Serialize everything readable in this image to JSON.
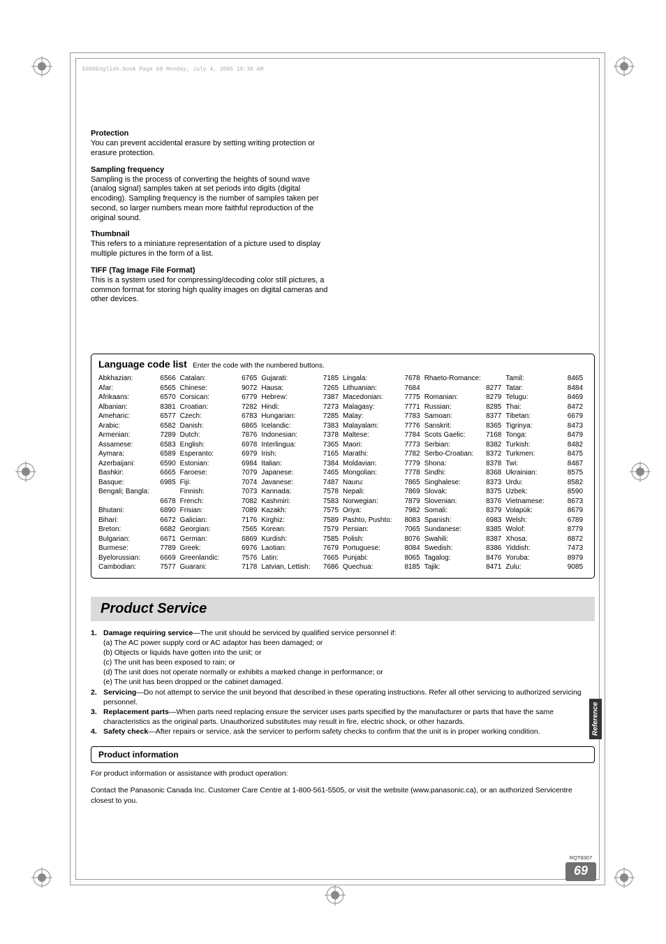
{
  "book_header": "E60DEnglish.book  Page 69  Monday, July 4, 2005  10:39 AM",
  "defs": {
    "protection": {
      "title": "Protection",
      "body": "You can prevent accidental erasure by setting writing protection or erasure protection."
    },
    "sampling": {
      "title": "Sampling frequency",
      "body": "Sampling is the process of converting the heights of sound wave (analog signal) samples taken at set periods into digits (digital encoding). Sampling frequency is the number of samples taken per second, so larger numbers mean more faithful reproduction of the original sound."
    },
    "thumb": {
      "title": "Thumbnail",
      "body": "This refers to a miniature representation of a picture used to display multiple pictures in the form of a list."
    },
    "tiff": {
      "title": "TIFF (Tag Image File Format)",
      "body": "This is a system used for compressing/decoding color still pictures, a common format for storing high quality images on digital cameras and other devices."
    }
  },
  "lang": {
    "title": "Language code list",
    "sub": "Enter the code with the numbered buttons.",
    "cols": [
      [
        {
          "n": "Abkhazian:",
          "c": "6566"
        },
        {
          "n": "Afar:",
          "c": "6565"
        },
        {
          "n": "Afrikaans:",
          "c": "6570"
        },
        {
          "n": "Albanian:",
          "c": "8381"
        },
        {
          "n": "Ameharic:",
          "c": "6577"
        },
        {
          "n": "Arabic:",
          "c": "6582"
        },
        {
          "n": "Armenian:",
          "c": "7289"
        },
        {
          "n": "Assamese:",
          "c": "6583"
        },
        {
          "n": "Aymara:",
          "c": "6589"
        },
        {
          "n": "Azerbaijani:",
          "c": "6590"
        },
        {
          "n": "Bashkir:",
          "c": "6665"
        },
        {
          "n": "Basque:",
          "c": "6985"
        },
        {
          "n": "Bengali; Bangla:",
          "c": ""
        },
        {
          "n": "",
          "c": "6678"
        },
        {
          "n": "Bhutani:",
          "c": "6890"
        },
        {
          "n": "Bihari:",
          "c": "6672"
        },
        {
          "n": "Breton:",
          "c": "6682"
        },
        {
          "n": "Bulgarian:",
          "c": "6671"
        },
        {
          "n": "Burmese:",
          "c": "7789"
        },
        {
          "n": "Byelorussian:",
          "c": "6669"
        },
        {
          "n": "Cambodian:",
          "c": "7577"
        }
      ],
      [
        {
          "n": "Catalan:",
          "c": "6765"
        },
        {
          "n": "Chinese:",
          "c": "9072"
        },
        {
          "n": "Corsican:",
          "c": "6779"
        },
        {
          "n": "Croatian:",
          "c": "7282"
        },
        {
          "n": "Czech:",
          "c": "6783"
        },
        {
          "n": "Danish:",
          "c": "6865"
        },
        {
          "n": "Dutch:",
          "c": "7876"
        },
        {
          "n": "English:",
          "c": "6978"
        },
        {
          "n": "Esperanto:",
          "c": "6979"
        },
        {
          "n": "Estonian:",
          "c": "6984"
        },
        {
          "n": "Faroese:",
          "c": "7079"
        },
        {
          "n": "Fiji:",
          "c": "7074"
        },
        {
          "n": "Finnish:",
          "c": "7073"
        },
        {
          "n": "French:",
          "c": "7082"
        },
        {
          "n": "Frisian:",
          "c": "7089"
        },
        {
          "n": "Galician:",
          "c": "7176"
        },
        {
          "n": "Georgian:",
          "c": "7565"
        },
        {
          "n": "German:",
          "c": "6869"
        },
        {
          "n": "Greek:",
          "c": "6976"
        },
        {
          "n": "Greenlandic:",
          "c": "7576"
        },
        {
          "n": "Guarani:",
          "c": "7178"
        }
      ],
      [
        {
          "n": "Gujarati:",
          "c": "7185"
        },
        {
          "n": "Hausa:",
          "c": "7265"
        },
        {
          "n": "Hebrew:",
          "c": "7387"
        },
        {
          "n": "Hindi:",
          "c": "7273"
        },
        {
          "n": "Hungarian:",
          "c": "7285"
        },
        {
          "n": "Icelandic:",
          "c": "7383"
        },
        {
          "n": "Indonesian:",
          "c": "7378"
        },
        {
          "n": "Interlingua:",
          "c": "7365"
        },
        {
          "n": "Irish:",
          "c": "7165"
        },
        {
          "n": "Italian:",
          "c": "7384"
        },
        {
          "n": "Japanese:",
          "c": "7465"
        },
        {
          "n": "Javanese:",
          "c": "7487"
        },
        {
          "n": "Kannada:",
          "c": "7578"
        },
        {
          "n": "Kashmiri:",
          "c": "7583"
        },
        {
          "n": "Kazakh:",
          "c": "7575"
        },
        {
          "n": "Kirghiz:",
          "c": "7589"
        },
        {
          "n": "Korean:",
          "c": "7579"
        },
        {
          "n": "Kurdish:",
          "c": "7585"
        },
        {
          "n": "Laotian:",
          "c": "7679"
        },
        {
          "n": "Latin:",
          "c": "7665"
        },
        {
          "n": "Latvian, Lettish:",
          "c": "7686"
        }
      ],
      [
        {
          "n": "Lingala:",
          "c": "7678"
        },
        {
          "n": "Lithuanian:",
          "c": "7684"
        },
        {
          "n": "Macedonian:",
          "c": "7775"
        },
        {
          "n": "Malagasy:",
          "c": "7771"
        },
        {
          "n": "Malay:",
          "c": "7783"
        },
        {
          "n": "Malayalam:",
          "c": "7776"
        },
        {
          "n": "Maltese:",
          "c": "7784"
        },
        {
          "n": "Maori:",
          "c": "7773"
        },
        {
          "n": "Marathi:",
          "c": "7782"
        },
        {
          "n": "Moldavian:",
          "c": "7779"
        },
        {
          "n": "Mongolian:",
          "c": "7778"
        },
        {
          "n": "Nauru:",
          "c": "7865"
        },
        {
          "n": "Nepali:",
          "c": "7869"
        },
        {
          "n": "Norwegian:",
          "c": "7879"
        },
        {
          "n": "Oriya:",
          "c": "7982"
        },
        {
          "n": "Pashto, Pushto:",
          "c": "8083"
        },
        {
          "n": "Persian:",
          "c": "7065"
        },
        {
          "n": "Polish:",
          "c": "8076"
        },
        {
          "n": "Portuguese:",
          "c": "8084"
        },
        {
          "n": "Punjabi:",
          "c": "8065"
        },
        {
          "n": "Quechua:",
          "c": "8185"
        }
      ],
      [
        {
          "n": "Rhaeto-Romance:",
          "c": ""
        },
        {
          "n": "",
          "c": "8277"
        },
        {
          "n": "Romanian:",
          "c": "8279"
        },
        {
          "n": "Russian:",
          "c": "8285"
        },
        {
          "n": "Samoan:",
          "c": "8377"
        },
        {
          "n": "Sanskrit:",
          "c": "8365"
        },
        {
          "n": "Scots Gaelic:",
          "c": "7168"
        },
        {
          "n": "Serbian:",
          "c": "8382"
        },
        {
          "n": "Serbo-Croatian:",
          "c": "8372"
        },
        {
          "n": "Shona:",
          "c": "8378"
        },
        {
          "n": "Sindhi:",
          "c": "8368"
        },
        {
          "n": "Singhalese:",
          "c": "8373"
        },
        {
          "n": "Slovak:",
          "c": "8375"
        },
        {
          "n": "Slovenian:",
          "c": "8376"
        },
        {
          "n": "Somali:",
          "c": "8379"
        },
        {
          "n": "Spanish:",
          "c": "6983"
        },
        {
          "n": "Sundanese:",
          "c": "8385"
        },
        {
          "n": "Swahili:",
          "c": "8387"
        },
        {
          "n": "Swedish:",
          "c": "8386"
        },
        {
          "n": "Tagalog:",
          "c": "8476"
        },
        {
          "n": "Tajik:",
          "c": "8471"
        }
      ],
      [
        {
          "n": "Tamil:",
          "c": "8465"
        },
        {
          "n": "Tatar:",
          "c": "8484"
        },
        {
          "n": "Telugu:",
          "c": "8469"
        },
        {
          "n": "Thai:",
          "c": "8472"
        },
        {
          "n": "Tibetan:",
          "c": "6679"
        },
        {
          "n": "Tigrinya:",
          "c": "8473"
        },
        {
          "n": "Tonga:",
          "c": "8479"
        },
        {
          "n": "Turkish:",
          "c": "8482"
        },
        {
          "n": "Turkmen:",
          "c": "8475"
        },
        {
          "n": "Twi:",
          "c": "8487"
        },
        {
          "n": "Ukrainian:",
          "c": "8575"
        },
        {
          "n": "Urdu:",
          "c": "8582"
        },
        {
          "n": "Uzbek:",
          "c": "8590"
        },
        {
          "n": "Vietnamese:",
          "c": "8673"
        },
        {
          "n": "Volapük:",
          "c": "8679"
        },
        {
          "n": "Welsh:",
          "c": "6789"
        },
        {
          "n": "Wolof:",
          "c": "8779"
        },
        {
          "n": "Xhosa:",
          "c": "8872"
        },
        {
          "n": "Yiddish:",
          "c": "7473"
        },
        {
          "n": "Yoruba:",
          "c": "8979"
        },
        {
          "n": "Zulu:",
          "c": "9085"
        }
      ]
    ]
  },
  "service": {
    "heading": "Product Service",
    "items": [
      {
        "num": "1.",
        "title": "Damage requiring service",
        "body": "—The unit should be serviced by qualified service personnel if:",
        "subs": [
          "(a) The AC power supply cord or AC adaptor has been damaged; or",
          "(b) Objects or liquids have gotten into the unit; or",
          "(c) The unit has been exposed to rain; or",
          "(d) The unit does not operate normally or exhibits a marked change in performance; or",
          "(e) The unit has been dropped or the cabinet damaged."
        ]
      },
      {
        "num": "2.",
        "title": "Servicing",
        "body": "—Do not attempt to service the unit beyond that described in these operating instructions. Refer all other servicing to authorized servicing personnel.",
        "subs": []
      },
      {
        "num": "3.",
        "title": "Replacement parts",
        "body": "—When parts need replacing ensure the servicer uses parts specified by the manufacturer or parts that have the same characteristics as the original parts. Unauthorized substitutes may result in fire, electric shock, or other hazards.",
        "subs": []
      },
      {
        "num": "4.",
        "title": "Safety check",
        "body": "—After repairs or service, ask the servicer to perform safety checks to confirm that the unit is in proper working condition.",
        "subs": []
      }
    ]
  },
  "prod_info": {
    "title": "Product information",
    "line1": "For product information or assistance with product operation:",
    "line2": "Contact the Panasonic Canada Inc. Customer Care Centre at 1-800-561-5505, or visit the website (www.panasonic.ca), or an authorized Servicentre closest to you."
  },
  "side_tab": "Reference",
  "rqt": "RQT8307",
  "page_num": "69",
  "style": {
    "bg": "#ffffff",
    "text": "#000000",
    "heading_bg": "#dadada",
    "tab_bg": "#333333",
    "pn_bg": "#707070",
    "border": "#000000"
  }
}
